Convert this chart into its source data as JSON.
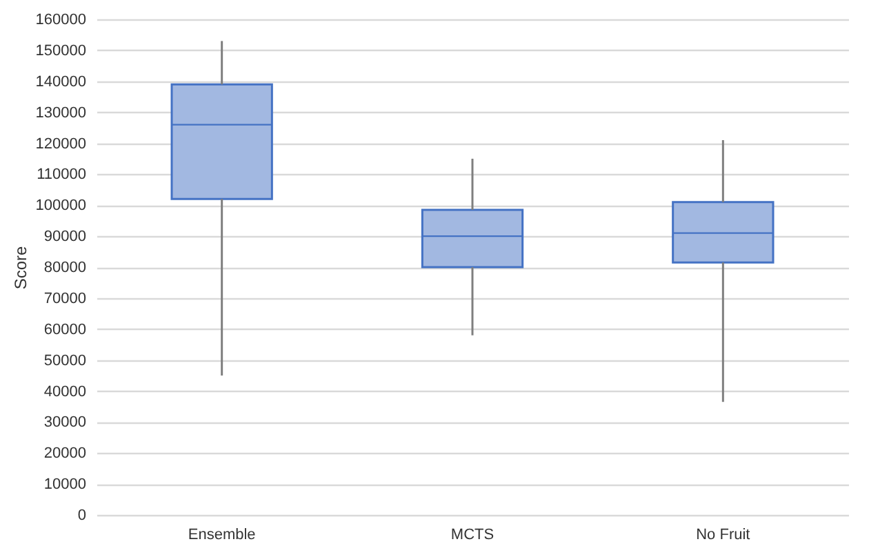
{
  "chart_data": {
    "type": "box",
    "ylabel": "Score",
    "categories": [
      "Ensemble",
      "MCTS",
      "No Fruit"
    ],
    "boxes": [
      {
        "low": 45000,
        "q1": 102000,
        "median": 126000,
        "q3": 139000,
        "high": 153000
      },
      {
        "low": 58000,
        "q1": 80000,
        "median": 90000,
        "q3": 98500,
        "high": 115000
      },
      {
        "low": 36500,
        "q1": 81500,
        "median": 91000,
        "q3": 101000,
        "high": 121000
      }
    ],
    "color": "#a2b8e1",
    "ylim": [
      0,
      160000
    ],
    "yticks": [
      0,
      10000,
      20000,
      30000,
      40000,
      50000,
      60000,
      70000,
      80000,
      90000,
      100000,
      110000,
      120000,
      130000,
      140000,
      150000,
      160000
    ],
    "grid": "y"
  }
}
